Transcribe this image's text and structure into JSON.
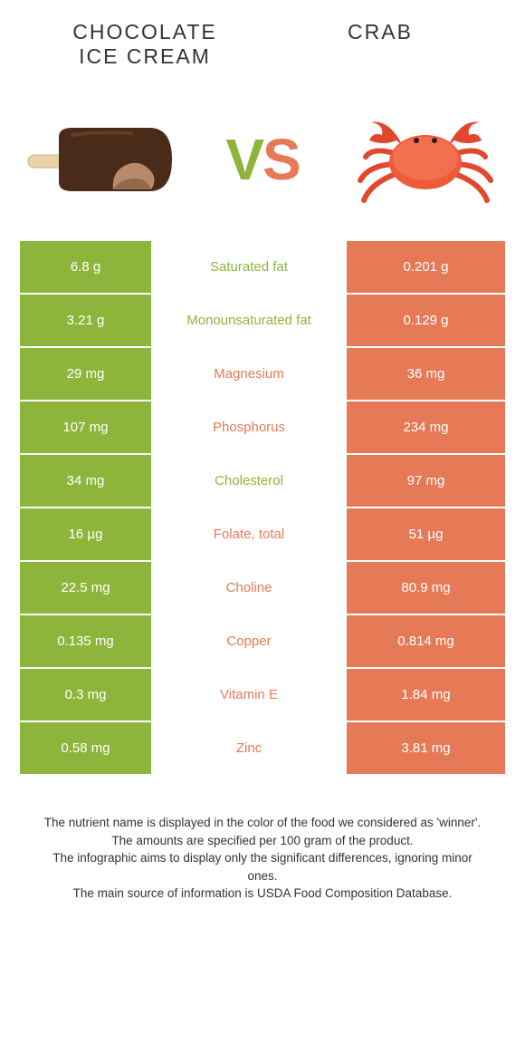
{
  "colors": {
    "left": "#8eb53b",
    "right": "#e67a56",
    "left_text": "#ffffff",
    "right_text": "#ffffff",
    "background": "#ffffff",
    "body_text": "#333333"
  },
  "header": {
    "left": "CHOCOLATE\nICE CREAM",
    "right": "CRAB"
  },
  "vs": {
    "v": "V",
    "s": "S"
  },
  "rows": [
    {
      "left": "6.8 g",
      "label": "Saturated fat",
      "right": "0.201 g",
      "winner": "left"
    },
    {
      "left": "3.21 g",
      "label": "Monounsaturated fat",
      "right": "0.129 g",
      "winner": "left"
    },
    {
      "left": "29 mg",
      "label": "Magnesium",
      "right": "36 mg",
      "winner": "right"
    },
    {
      "left": "107 mg",
      "label": "Phosphorus",
      "right": "234 mg",
      "winner": "right"
    },
    {
      "left": "34 mg",
      "label": "Cholesterol",
      "right": "97 mg",
      "winner": "left"
    },
    {
      "left": "16 µg",
      "label": "Folate, total",
      "right": "51 µg",
      "winner": "right"
    },
    {
      "left": "22.5 mg",
      "label": "Choline",
      "right": "80.9 mg",
      "winner": "right"
    },
    {
      "left": "0.135 mg",
      "label": "Copper",
      "right": "0.814 mg",
      "winner": "right"
    },
    {
      "left": "0.3 mg",
      "label": "Vitamin E",
      "right": "1.84 mg",
      "winner": "right"
    },
    {
      "left": "0.58 mg",
      "label": "Zinc",
      "right": "3.81 mg",
      "winner": "right"
    }
  ],
  "footer": {
    "line1": "The nutrient name is displayed in the color of the food we considered as 'winner'.",
    "line2": "The amounts are specified per 100 gram of the product.",
    "line3": "The infographic aims to display only the significant differences, ignoring minor ones.",
    "line4": "The main source of information is USDA Food Composition Database."
  }
}
